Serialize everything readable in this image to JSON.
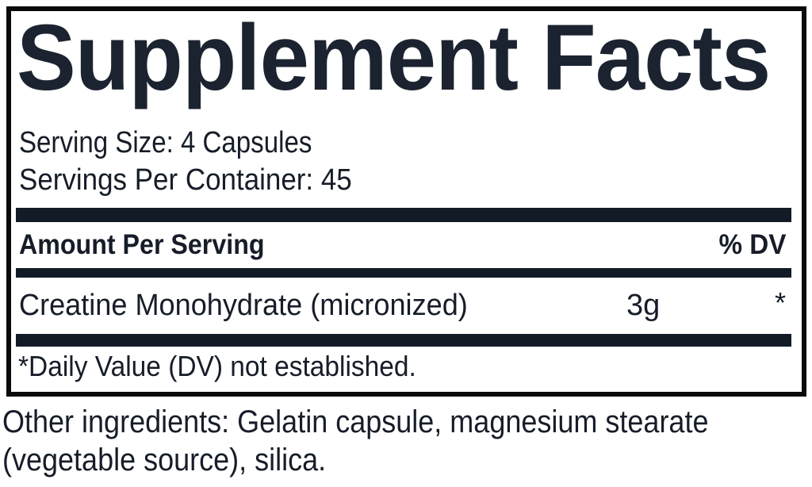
{
  "label": {
    "title": "Supplement Facts",
    "serving_size": "Serving Size: 4 Capsules",
    "servings_per_container": "Servings Per Container: 45",
    "columns": {
      "amount_header": "Amount Per Serving",
      "dv_header": "% DV"
    },
    "rows": [
      {
        "name": "Creatine Monohydrate (micronized)",
        "amount": "3g",
        "dv": "*"
      }
    ],
    "footnote": "*Daily Value (DV) not established."
  },
  "other_ingredients": {
    "line1": "Other ingredients: Gelatin capsule, magnesium stearate",
    "line2": "(vegetable source), silica."
  },
  "colors": {
    "text": "#161d28",
    "title_text": "#1c2330",
    "bar": "#121b26",
    "border": "#0a0a0a",
    "background": "#ffffff"
  }
}
